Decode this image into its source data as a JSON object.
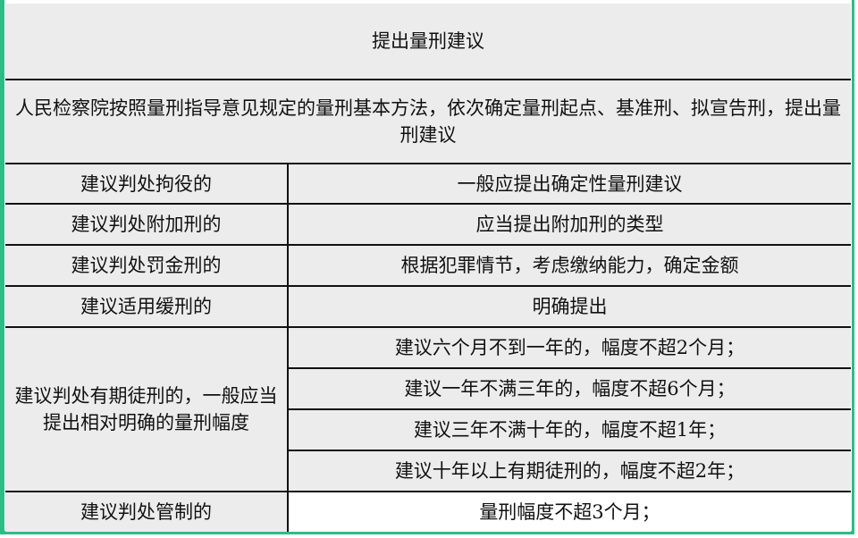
{
  "title": "提出量刑建议",
  "intro": "人民检察院按照量刑指导意见规定的量刑基本方法，依次确定量刑起点、基准刑、拟宣告刑，提出量刑建议",
  "rows": [
    {
      "left": "建议判处拘役的",
      "right": "一般应提出确定性量刑建议"
    },
    {
      "left": "建议判处附加刑的",
      "right": "应当提出附加刑的类型"
    },
    {
      "left": "建议判处罚金刑的",
      "right": "根据犯罪情节，考虑缴纳能力，确定金额"
    },
    {
      "left": "建议适用缓刑的",
      "right": "明确提出"
    }
  ],
  "group": {
    "left": "建议判处有期徒刑的，一般应当提出相对明确的量刑幅度",
    "items": [
      "建议六个月不到一年的，幅度不超2个月；",
      "建议一年不满三年的，幅度不超6个月；",
      "建议三年不满十年的，幅度不超1年；",
      "建议十年以上有期徒刑的，幅度不超2年；"
    ]
  },
  "last": {
    "left": "建议判处管制的",
    "right": "量刑幅度不超3个月；"
  },
  "colors": {
    "frame": "#2bbd86",
    "cell_bg": "#ececec"
  }
}
